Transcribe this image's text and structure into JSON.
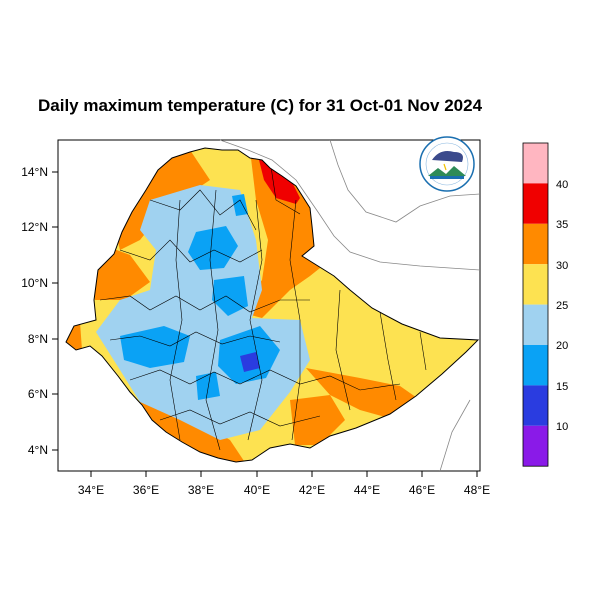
{
  "title": "Daily maximum temperature (C) for 31 Oct-01 Nov 2024",
  "map": {
    "lon_ticks": [
      "34°E",
      "36°E",
      "38°E",
      "40°E",
      "42°E",
      "44°E",
      "46°E",
      "48°E"
    ],
    "lat_ticks": [
      "14°N",
      "12°N",
      "10°N",
      "8°N",
      "6°N",
      "4°N"
    ],
    "extent": {
      "lon": [
        33,
        48.2
      ],
      "lat": [
        3.2,
        15
      ]
    }
  },
  "legend": {
    "levels": [
      "10",
      "15",
      "20",
      "25",
      "30",
      "35",
      "40"
    ],
    "colors": [
      "#8a1ae8",
      "#2a3ce0",
      "#0aa2f5",
      "#a0d2f0",
      "#fde251",
      "#ff8a00",
      "#f00000",
      "#ffb6c1"
    ]
  },
  "colors": {
    "warm": "#fde251",
    "hot": "#ff8a00",
    "very_hot": "#f00000",
    "mild": "#a0d2f0",
    "cool": "#0aa2f5",
    "cold": "#2a3ce0"
  },
  "logo": {
    "name": "ethiopian-meteorology-institute-logo"
  }
}
